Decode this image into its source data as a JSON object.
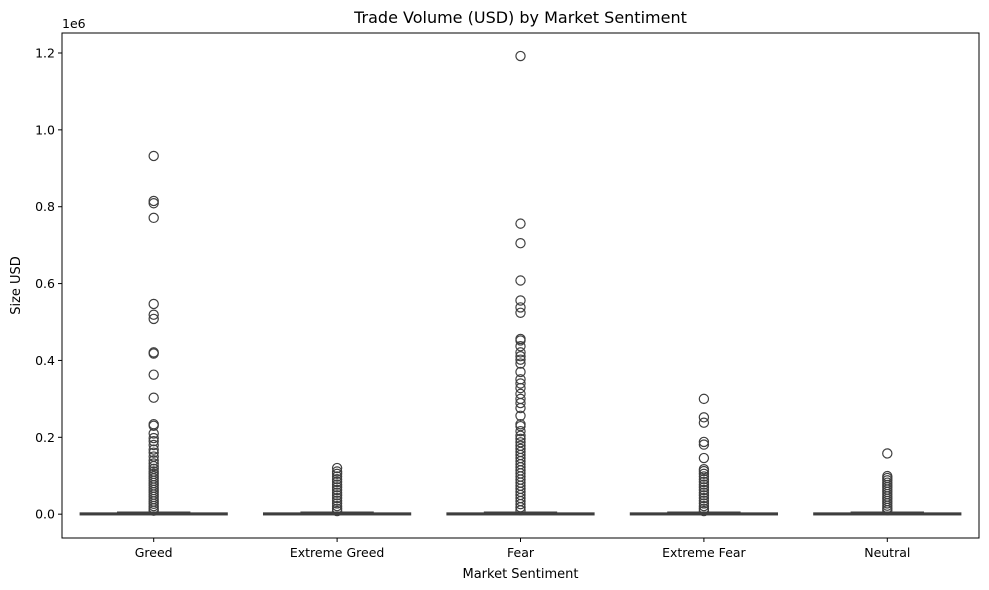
{
  "chart_data": {
    "type": "boxplot",
    "title": "Trade Volume (USD) by Market Sentiment",
    "xlabel": "Market Sentiment",
    "ylabel": "Size USD",
    "y_offset_label": "1e6",
    "y_scale_factor": 1000000,
    "ylim": [
      -62000,
      1252000
    ],
    "yticks": [
      0.0,
      0.2,
      0.4,
      0.6,
      0.8,
      1.0,
      1.2
    ],
    "ytick_labels": [
      "0.0",
      "0.2",
      "0.4",
      "0.6",
      "0.8",
      "1.0",
      "1.2"
    ],
    "categories": [
      "Greed",
      "Extreme Greed",
      "Fear",
      "Extreme Fear",
      "Neutral"
    ],
    "grid": false,
    "colors": {
      "box_edge": "#3f3f3f",
      "axis": "#000000",
      "background": "#ffffff"
    },
    "boxes": [
      {
        "category": "Greed",
        "q1": 60,
        "median": 550,
        "q3": 2000,
        "whisker_low": 0,
        "whisker_high": 4900,
        "outliers": [
          932000,
          815000,
          809000,
          771000,
          547000,
          519000,
          508000,
          421000,
          418000,
          363000,
          303000,
          234000,
          230000,
          210000,
          198000,
          190000,
          180000,
          168000,
          160000,
          150000,
          140000,
          132000,
          125000,
          118000,
          111000,
          105000,
          99000,
          93000,
          87000,
          81000,
          75000,
          69000,
          63000,
          57000,
          51000,
          45000,
          39000,
          33000,
          27000,
          21000,
          15000,
          9000
        ]
      },
      {
        "category": "Extreme Greed",
        "q1": 60,
        "median": 550,
        "q3": 2000,
        "whisker_low": 0,
        "whisker_high": 4900,
        "outliers": [
          120000,
          111000,
          105000,
          98000,
          91000,
          84000,
          77000,
          70000,
          63000,
          56000,
          49000,
          42000,
          35000,
          28000,
          21000,
          14000,
          8000
        ]
      },
      {
        "category": "Fear",
        "q1": 60,
        "median": 550,
        "q3": 2000,
        "whisker_low": 0,
        "whisker_high": 4900,
        "outliers": [
          1192000,
          756000,
          705000,
          608000,
          556000,
          538000,
          524000,
          456000,
          452000,
          437000,
          421000,
          411000,
          402000,
          392000,
          370000,
          351000,
          340000,
          328000,
          313000,
          300000,
          289000,
          276000,
          256000,
          234000,
          229000,
          216000,
          204000,
          196000,
          187000,
          178000,
          170000,
          162000,
          154000,
          146000,
          138000,
          130000,
          122000,
          114000,
          106000,
          98000,
          90000,
          82000,
          74000,
          66000,
          58000,
          50000,
          42000,
          34000,
          26000,
          18000,
          10000
        ]
      },
      {
        "category": "Extreme Fear",
        "q1": 60,
        "median": 550,
        "q3": 2000,
        "whisker_low": 0,
        "whisker_high": 4900,
        "outliers": [
          300000,
          252000,
          238000,
          188000,
          181000,
          146000,
          117000,
          112000,
          105000,
          98000,
          91000,
          84000,
          77000,
          70000,
          63000,
          56000,
          49000,
          42000,
          35000,
          28000,
          21000,
          14000,
          8000
        ]
      },
      {
        "category": "Neutral",
        "q1": 60,
        "median": 550,
        "q3": 2000,
        "whisker_low": 0,
        "whisker_high": 4900,
        "outliers": [
          158000,
          99000,
          94000,
          88000,
          82000,
          76000,
          70000,
          64000,
          58000,
          52000,
          46000,
          40000,
          34000,
          28000,
          22000,
          16000,
          10000
        ]
      }
    ]
  }
}
